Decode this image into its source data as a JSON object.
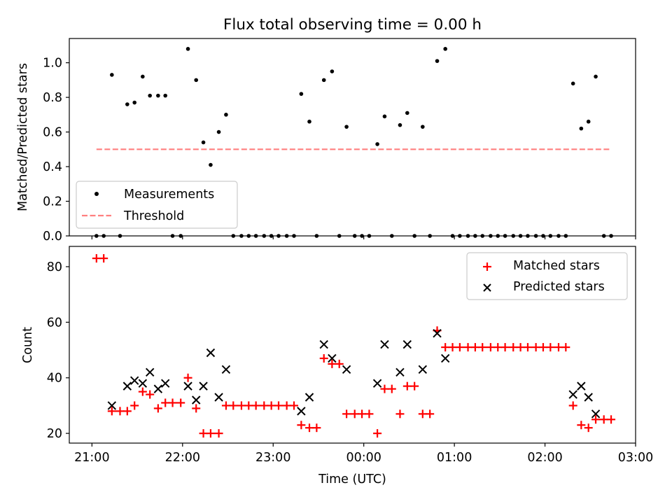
{
  "figure": {
    "title": "Flux total observing time = 0.00 h",
    "background": "#ffffff"
  },
  "chart_data": [
    {
      "type": "scatter",
      "xlabel": "",
      "ylabel": "Matched/Predicted stars",
      "xlim": [
        -0.25,
        6.0
      ],
      "ylim": [
        0,
        1.14
      ],
      "yticks": [
        0.0,
        0.2,
        0.4,
        0.6,
        0.8,
        1.0
      ],
      "ytick_labels": [
        "0.0",
        "0.2",
        "0.4",
        "0.6",
        "0.8",
        "1.0"
      ],
      "legend_position": "lower-left",
      "grid": false,
      "series": [
        {
          "name": "Measurements",
          "marker": "dot",
          "color": "#000000",
          "x": [
            0.05,
            0.13,
            0.22,
            0.31,
            0.39,
            0.47,
            0.56,
            0.64,
            0.73,
            0.81,
            0.89,
            0.98,
            1.06,
            1.15,
            1.23,
            1.31,
            1.4,
            1.48,
            1.56,
            1.65,
            1.73,
            1.81,
            1.9,
            1.98,
            2.06,
            2.15,
            2.23,
            2.31,
            2.4,
            2.48,
            2.56,
            2.65,
            2.73,
            2.81,
            2.9,
            2.98,
            3.06,
            3.15,
            3.23,
            3.31,
            3.4,
            3.48,
            3.56,
            3.65,
            3.73,
            3.81,
            3.9,
            3.98,
            4.06,
            4.15,
            4.23,
            4.31,
            4.4,
            4.48,
            4.56,
            4.65,
            4.73,
            4.81,
            4.9,
            4.98,
            5.06,
            5.15,
            5.23,
            5.31,
            5.4,
            5.48,
            5.56,
            5.65,
            5.73
          ],
          "y": [
            0.0,
            0.0,
            0.93,
            0.0,
            0.76,
            0.77,
            0.92,
            0.81,
            0.81,
            0.81,
            0.0,
            0.0,
            1.08,
            0.9,
            0.54,
            0.41,
            0.6,
            0.7,
            0.0,
            0.0,
            0.0,
            0.0,
            0.0,
            0.0,
            0.0,
            0.0,
            0.0,
            0.82,
            0.66,
            0.0,
            0.9,
            0.95,
            0.0,
            0.63,
            0.0,
            0.0,
            0.0,
            0.53,
            0.69,
            0.0,
            0.64,
            0.71,
            0.0,
            0.63,
            0.0,
            1.01,
            1.08,
            0.0,
            0.0,
            0.0,
            0.0,
            0.0,
            0.0,
            0.0,
            0.0,
            0.0,
            0.0,
            0.0,
            0.0,
            0.0,
            0.0,
            0.0,
            0.0,
            0.88,
            0.62,
            0.66,
            0.92,
            0.0,
            0.0
          ]
        },
        {
          "name": "Threshold",
          "type": "line",
          "style": "dashed",
          "color": "#ff7f7f",
          "x": [
            0.05,
            5.73
          ],
          "y": [
            0.5,
            0.5
          ]
        }
      ]
    },
    {
      "type": "scatter",
      "xlabel": "Time (UTC)",
      "ylabel": "Count",
      "xlim": [
        -0.25,
        6.0
      ],
      "ylim": [
        16.5,
        87.3
      ],
      "yticks": [
        20,
        40,
        60,
        80
      ],
      "ytick_labels": [
        "20",
        "40",
        "60",
        "80"
      ],
      "xticks": [
        0,
        1,
        2,
        3,
        4,
        5,
        6
      ],
      "xtick_labels": [
        "21:00",
        "22:00",
        "23:00",
        "00:00",
        "01:00",
        "02:00",
        "03:00"
      ],
      "legend_position": "upper-right",
      "grid": false,
      "series": [
        {
          "name": "Matched stars",
          "marker": "plus",
          "color": "#ff0000",
          "x": [
            0.05,
            0.13,
            0.22,
            0.31,
            0.39,
            0.47,
            0.56,
            0.64,
            0.73,
            0.81,
            0.89,
            0.98,
            1.06,
            1.15,
            1.23,
            1.31,
            1.4,
            1.48,
            1.56,
            1.65,
            1.73,
            1.81,
            1.9,
            1.98,
            2.06,
            2.15,
            2.23,
            2.31,
            2.4,
            2.48,
            2.56,
            2.65,
            2.73,
            2.81,
            2.9,
            2.98,
            3.06,
            3.15,
            3.23,
            3.31,
            3.4,
            3.48,
            3.56,
            3.65,
            3.73,
            3.81,
            3.9,
            3.98,
            4.06,
            4.15,
            4.23,
            4.31,
            4.4,
            4.48,
            4.56,
            4.65,
            4.73,
            4.81,
            4.9,
            4.98,
            5.06,
            5.15,
            5.23,
            5.31,
            5.4,
            5.48,
            5.56,
            5.65,
            5.73
          ],
          "y": [
            83,
            83,
            28,
            28,
            28,
            30,
            35,
            34,
            29,
            31,
            31,
            31,
            40,
            29,
            20,
            20,
            20,
            30,
            30,
            30,
            30,
            30,
            30,
            30,
            30,
            30,
            30,
            23,
            22,
            22,
            47,
            45,
            45,
            27,
            27,
            27,
            27,
            20,
            36,
            36,
            27,
            37,
            37,
            27,
            27,
            57,
            51,
            51,
            51,
            51,
            51,
            51,
            51,
            51,
            51,
            51,
            51,
            51,
            51,
            51,
            51,
            51,
            51,
            30,
            23,
            22,
            25,
            25,
            25
          ]
        },
        {
          "name": "Predicted stars",
          "marker": "x",
          "color": "#000000",
          "x": [
            0.22,
            0.39,
            0.47,
            0.56,
            0.64,
            0.73,
            0.81,
            1.06,
            1.15,
            1.23,
            1.31,
            1.4,
            1.48,
            2.31,
            2.4,
            2.56,
            2.65,
            2.81,
            3.15,
            3.23,
            3.4,
            3.48,
            3.65,
            3.81,
            3.9,
            5.31,
            5.4,
            5.48,
            5.56
          ],
          "y": [
            30,
            37,
            39,
            38,
            42,
            36,
            38,
            37,
            32,
            37,
            49,
            33,
            43,
            28,
            33,
            52,
            47,
            43,
            38,
            52,
            42,
            52,
            43,
            56,
            47,
            34,
            37,
            33,
            27
          ]
        }
      ]
    }
  ]
}
